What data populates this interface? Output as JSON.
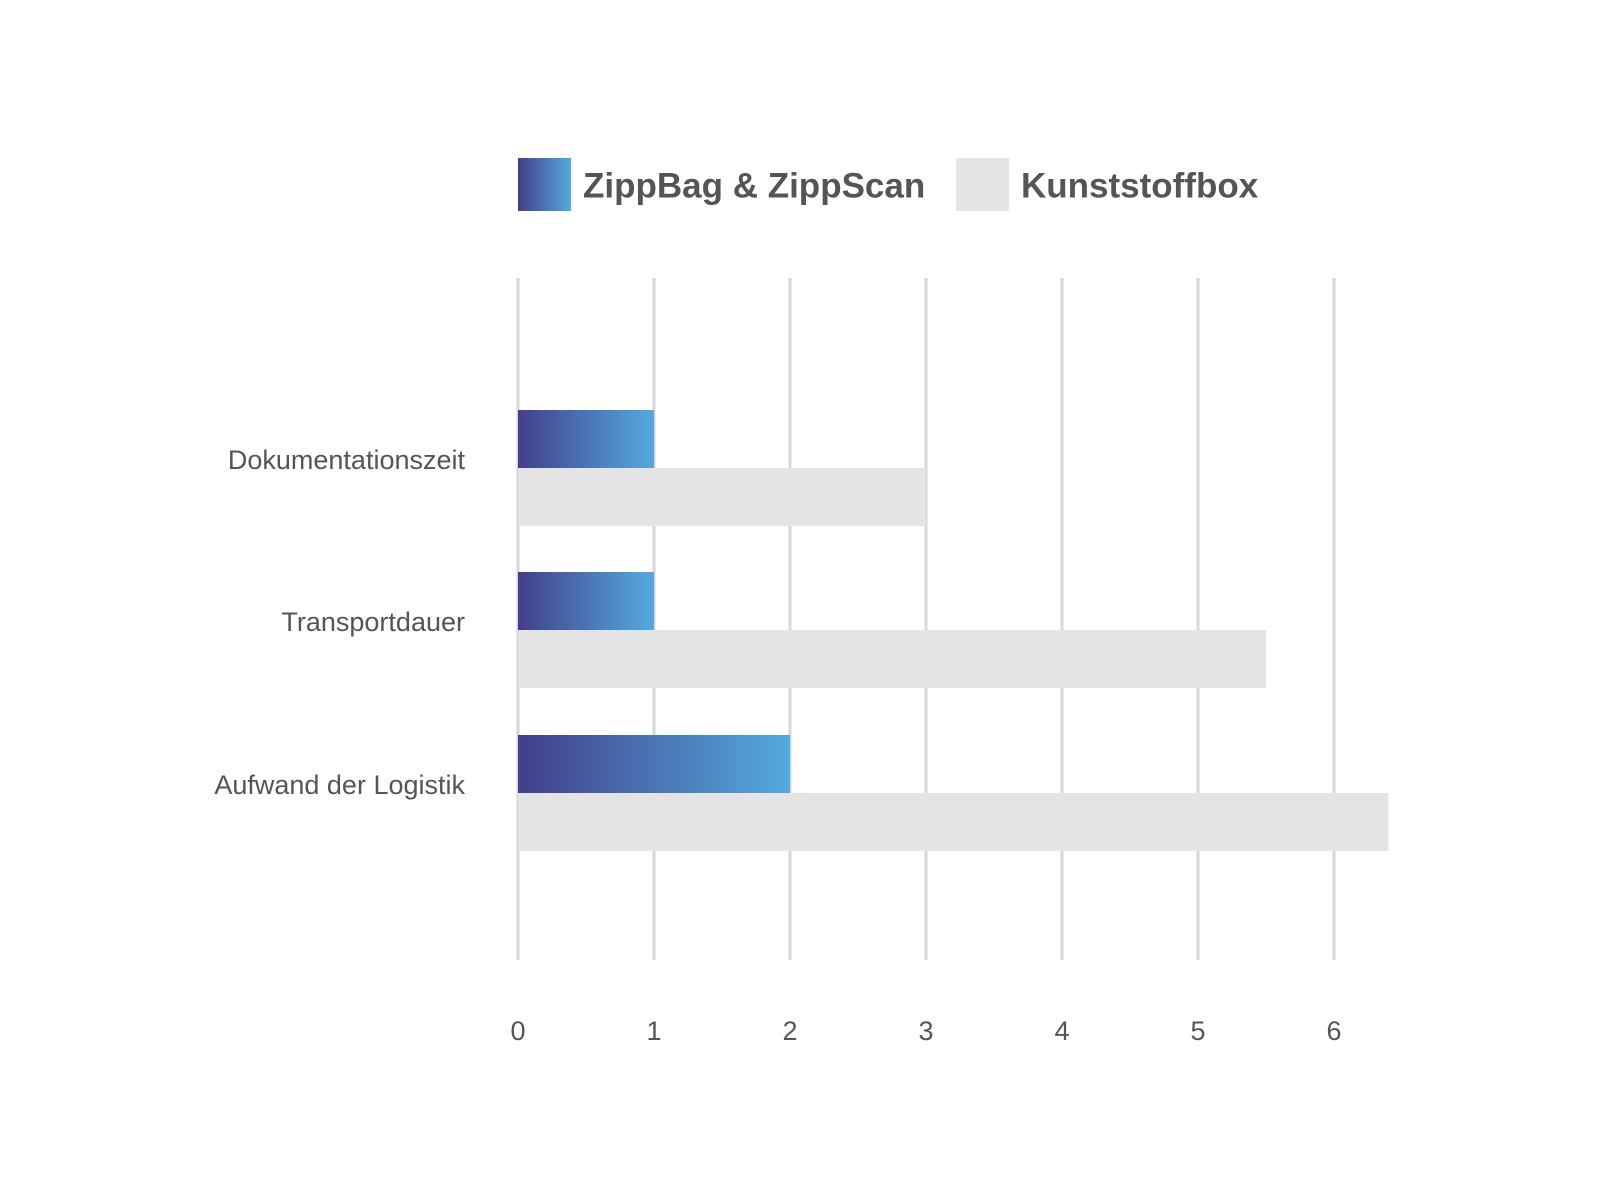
{
  "chart_data": {
    "type": "hbar",
    "categories": [
      "Dokumentationszeit",
      "Transportdauer",
      "Aufwand der Logistik"
    ],
    "series": [
      {
        "name": "ZippBag & ZippScan",
        "gradient": [
          "#433f8a",
          "#52aade"
        ],
        "values": [
          1,
          1,
          2
        ]
      },
      {
        "name": "Kunststoffbox",
        "color": "#e4e4e4",
        "values": [
          3,
          5.5,
          6.4
        ]
      }
    ],
    "xlim": [
      0,
      6.4
    ],
    "xticks": [
      0,
      1,
      2,
      3,
      4,
      5,
      6
    ],
    "grid": true,
    "legend": "top"
  }
}
